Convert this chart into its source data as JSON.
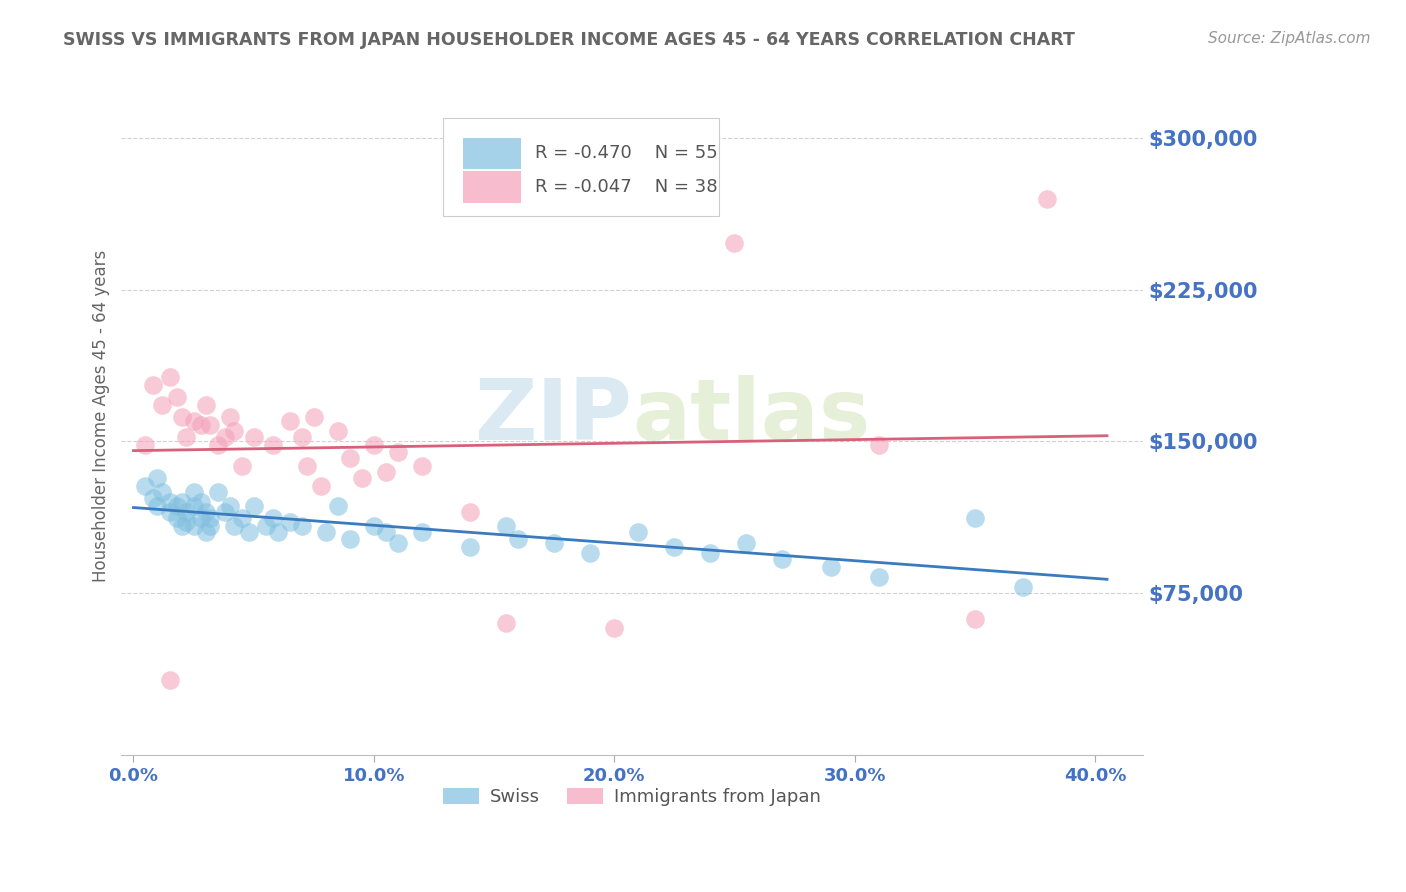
{
  "title": "SWISS VS IMMIGRANTS FROM JAPAN HOUSEHOLDER INCOME AGES 45 - 64 YEARS CORRELATION CHART",
  "source": "Source: ZipAtlas.com",
  "ylabel": "Householder Income Ages 45 - 64 years",
  "xlabel_ticks": [
    "0.0%",
    "10.0%",
    "20.0%",
    "30.0%",
    "40.0%"
  ],
  "xlabel_vals": [
    0.0,
    0.1,
    0.2,
    0.3,
    0.4
  ],
  "ylabel_ticks": [
    "$75,000",
    "$150,000",
    "$225,000",
    "$300,000"
  ],
  "ylabel_vals": [
    75000,
    150000,
    225000,
    300000
  ],
  "xlim": [
    -0.005,
    0.42
  ],
  "ylim": [
    -5000,
    330000
  ],
  "watermark_zip": "ZIP",
  "watermark_atlas": "atlas",
  "legend_swiss_R": "R = -0.470",
  "legend_swiss_N": "N = 55",
  "legend_japan_R": "R = -0.047",
  "legend_japan_N": "N = 38",
  "swiss_color": "#7fbfdf",
  "japan_color": "#f4a0b8",
  "swiss_line_color": "#3a7bbf",
  "japan_line_color": "#d9607a",
  "background_color": "#ffffff",
  "grid_color": "#cccccc",
  "title_color": "#666666",
  "axis_label_color": "#666666",
  "tick_label_color": "#4472c4",
  "swiss_x": [
    0.005,
    0.008,
    0.01,
    0.01,
    0.012,
    0.015,
    0.015,
    0.018,
    0.018,
    0.02,
    0.02,
    0.022,
    0.022,
    0.025,
    0.025,
    0.025,
    0.028,
    0.028,
    0.03,
    0.03,
    0.032,
    0.032,
    0.035,
    0.038,
    0.04,
    0.042,
    0.045,
    0.048,
    0.05,
    0.055,
    0.058,
    0.06,
    0.065,
    0.07,
    0.08,
    0.085,
    0.09,
    0.1,
    0.105,
    0.11,
    0.12,
    0.14,
    0.155,
    0.16,
    0.175,
    0.19,
    0.21,
    0.225,
    0.24,
    0.255,
    0.27,
    0.29,
    0.31,
    0.35,
    0.37
  ],
  "swiss_y": [
    128000,
    122000,
    132000,
    118000,
    125000,
    120000,
    115000,
    118000,
    112000,
    120000,
    108000,
    115000,
    110000,
    125000,
    118000,
    108000,
    120000,
    112000,
    115000,
    105000,
    112000,
    108000,
    125000,
    115000,
    118000,
    108000,
    112000,
    105000,
    118000,
    108000,
    112000,
    105000,
    110000,
    108000,
    105000,
    118000,
    102000,
    108000,
    105000,
    100000,
    105000,
    98000,
    108000,
    102000,
    100000,
    95000,
    105000,
    98000,
    95000,
    100000,
    92000,
    88000,
    83000,
    112000,
    78000
  ],
  "japan_x": [
    0.005,
    0.008,
    0.012,
    0.015,
    0.018,
    0.02,
    0.022,
    0.025,
    0.028,
    0.03,
    0.032,
    0.035,
    0.038,
    0.04,
    0.042,
    0.045,
    0.05,
    0.058,
    0.065,
    0.07,
    0.072,
    0.075,
    0.078,
    0.085,
    0.09,
    0.095,
    0.1,
    0.105,
    0.11,
    0.12,
    0.14,
    0.155,
    0.2,
    0.25,
    0.31,
    0.35,
    0.38,
    0.015
  ],
  "japan_y": [
    148000,
    178000,
    168000,
    182000,
    172000,
    162000,
    152000,
    160000,
    158000,
    168000,
    158000,
    148000,
    152000,
    162000,
    155000,
    138000,
    152000,
    148000,
    160000,
    152000,
    138000,
    162000,
    128000,
    155000,
    142000,
    132000,
    148000,
    135000,
    145000,
    138000,
    115000,
    60000,
    58000,
    248000,
    148000,
    62000,
    270000,
    32000
  ]
}
